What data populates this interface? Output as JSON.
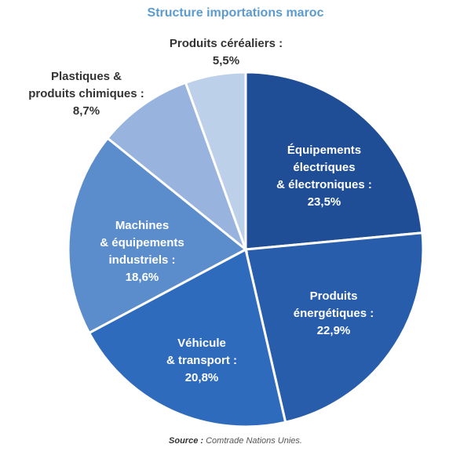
{
  "chart_data": {
    "type": "pie",
    "title": "Structure importations maroc",
    "start": "top",
    "direction": "clockwise",
    "slices": [
      {
        "label_lines": [
          "Équipements",
          "électriques",
          "& électroniques :",
          "23,5%"
        ],
        "value": 23.5,
        "color": "#1f4e96",
        "label_color": "#ffffff"
      },
      {
        "label_lines": [
          "Produits",
          "énergétiques :",
          "22,9%"
        ],
        "value": 22.9,
        "color": "#285dac",
        "label_color": "#ffffff"
      },
      {
        "label_lines": [
          "Véhicule",
          "& transport :",
          "20,8%"
        ],
        "value": 20.8,
        "color": "#2f6bbd",
        "label_color": "#ffffff"
      },
      {
        "label_lines": [
          "Machines",
          "& équipements",
          "industriels :",
          "18,6%"
        ],
        "value": 18.6,
        "color": "#5b8dcc",
        "label_color": "#ffffff"
      },
      {
        "label_lines": [
          "Plastiques &",
          "produits chimiques :",
          "8,7%"
        ],
        "value": 8.7,
        "color": "#98b4de",
        "label_color": "#333333"
      },
      {
        "label_lines": [
          "Produits céréaliers :",
          "5,5%"
        ],
        "value": 5.5,
        "color": "#bdd0ea",
        "label_color": "#333333"
      }
    ]
  },
  "source": {
    "label": "Source :",
    "text": "Comtrade Nations Unies."
  }
}
